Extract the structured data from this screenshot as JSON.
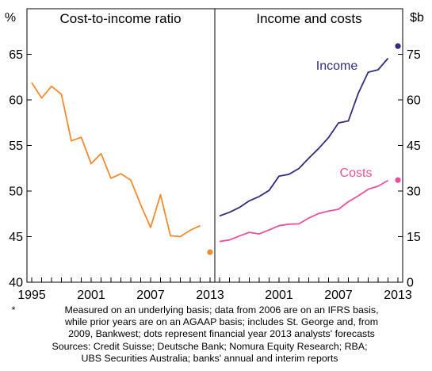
{
  "chart_data": [
    {
      "type": "line",
      "title": "Cost-to-income ratio",
      "ylabel": "%",
      "xlim": [
        1995,
        2013
      ],
      "ylim": [
        40,
        70
      ],
      "yticks": [
        40,
        45,
        50,
        55,
        60,
        65
      ],
      "xticks": [
        1995,
        2001,
        2007,
        2013
      ],
      "grid": false,
      "series": [
        {
          "color": "#f28a30",
          "x": [
            1995,
            1996,
            1997,
            1998,
            1999,
            2000,
            2001,
            2002,
            2003,
            2004,
            2005,
            2006,
            2007,
            2008,
            2009,
            2010,
            2011,
            2012
          ],
          "values": [
            61.9,
            60.2,
            61.5,
            60.6,
            55.5,
            55.9,
            53.0,
            54.1,
            51.4,
            51.9,
            51.2,
            48.5,
            46.0,
            49.6,
            45.1,
            45.0,
            45.7,
            46.2
          ]
        }
      ],
      "forecast": {
        "x": 2013,
        "value": 43.3,
        "color": "#f28a30"
      }
    },
    {
      "type": "line",
      "title": "Income and costs",
      "ylabel": "$b",
      "xlim": [
        1995,
        2013
      ],
      "ylim": [
        0,
        90
      ],
      "yticks": [
        0,
        15,
        30,
        45,
        60,
        75
      ],
      "xticks": [
        2001,
        2007,
        2013
      ],
      "grid": false,
      "series": [
        {
          "name": "Income",
          "color": "#2e2e7a",
          "x": [
            1995,
            1996,
            1997,
            1998,
            1999,
            2000,
            2001,
            2002,
            2003,
            2004,
            2005,
            2006,
            2007,
            2008,
            2009,
            2010,
            2011,
            2012
          ],
          "values": [
            21.8,
            23.0,
            24.6,
            26.8,
            28.2,
            30.2,
            34.9,
            35.5,
            37.4,
            40.8,
            44.0,
            47.6,
            52.4,
            53.1,
            62.2,
            69.1,
            69.9,
            73.7
          ]
        },
        {
          "name": "Costs",
          "color": "#e8509e",
          "x": [
            1995,
            1996,
            1997,
            1998,
            1999,
            2000,
            2001,
            2002,
            2003,
            2004,
            2005,
            2006,
            2007,
            2008,
            2009,
            2010,
            2011,
            2012
          ],
          "values": [
            13.4,
            13.9,
            15.2,
            16.4,
            15.9,
            17.2,
            18.6,
            19.1,
            19.2,
            21.1,
            22.6,
            23.4,
            24.0,
            26.5,
            28.4,
            30.6,
            31.6,
            33.5
          ]
        }
      ],
      "forecast": [
        {
          "series": "Income",
          "x": 2013,
          "value": 77.7,
          "color": "#2e2e7a"
        },
        {
          "series": "Costs",
          "x": 2013,
          "value": 33.6,
          "color": "#e8509e"
        }
      ]
    }
  ],
  "notes": {
    "mark": "*",
    "lines": [
      "Measured on an underlying basis; data from 2006 are on an IFRS basis,",
      "while prior years are on an AGAAP basis; includes St. George and, from",
      "2009, Bankwest; dots represent financial year 2013 analysts' forecasts"
    ],
    "sources": [
      "Sources: Credit Suisse; Deutsche Bank; Nomura Equity Research; RBA;",
      "UBS Securities Australia; banks' annual and interim reports"
    ]
  }
}
